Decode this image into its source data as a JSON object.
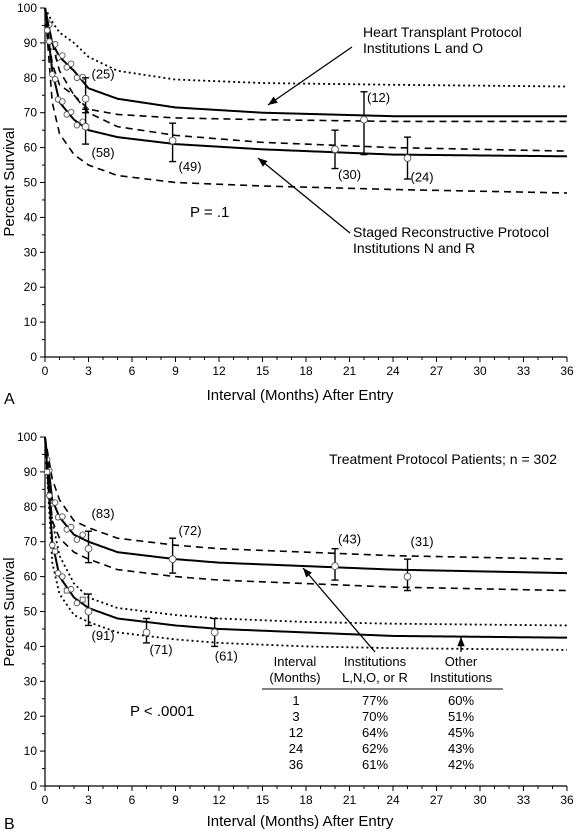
{
  "chart_data": [
    {
      "panel": "A",
      "type": "line",
      "xlabel": "Interval (Months) After Entry",
      "ylabel": "Percent Survival",
      "xlim": [
        0,
        36
      ],
      "ylim": [
        0,
        100
      ],
      "xticks": [
        "0",
        "3",
        "6",
        "9",
        "12",
        "15",
        "18",
        "21",
        "24",
        "27",
        "30",
        "33",
        "36"
      ],
      "yticks": [
        "0",
        "10",
        "20",
        "30",
        "40",
        "50",
        "60",
        "70",
        "80",
        "90",
        "100"
      ],
      "series": [
        {
          "name": "Heart Transplant Protocol Institutions L and O",
          "curve": [
            [
              0,
              100
            ],
            [
              0.5,
              90
            ],
            [
              1,
              86
            ],
            [
              2,
              82
            ],
            [
              3,
              77
            ],
            [
              5,
              74
            ],
            [
              9,
              71.5
            ],
            [
              15,
              70
            ],
            [
              24,
              69
            ],
            [
              36,
              69
            ]
          ],
          "upper": [
            [
              0,
              100
            ],
            [
              0.5,
              96
            ],
            [
              1,
              93
            ],
            [
              2,
              90
            ],
            [
              3,
              86
            ],
            [
              5,
              82
            ],
            [
              9,
              79.5
            ],
            [
              15,
              78.5
            ],
            [
              24,
              78
            ],
            [
              36,
              77.5
            ]
          ],
          "lower": [
            [
              0,
              100
            ],
            [
              0.5,
              84
            ],
            [
              1,
              78
            ],
            [
              2,
              75
            ],
            [
              3,
              71
            ],
            [
              5,
              69.5
            ],
            [
              9,
              68.5
            ],
            [
              15,
              68
            ],
            [
              24,
              67.5
            ],
            [
              36,
              67.5
            ]
          ],
          "labels": [
            {
              "x": 3,
              "text": "(25)"
            },
            {
              "x": 22,
              "text": "(12)"
            }
          ]
        },
        {
          "name": "Staged Reconstructive Protocol Institutions N and R",
          "curve": [
            [
              0,
              100
            ],
            [
              0.5,
              82
            ],
            [
              1,
              73
            ],
            [
              2,
              68
            ],
            [
              3,
              65
            ],
            [
              5,
              63
            ],
            [
              9,
              61
            ],
            [
              15,
              59.5
            ],
            [
              24,
              58
            ],
            [
              36,
              57.5
            ]
          ],
          "upper": [
            [
              0,
              100
            ],
            [
              0.5,
              90
            ],
            [
              1,
              82
            ],
            [
              2,
              75
            ],
            [
              3,
              70
            ],
            [
              5,
              66
            ],
            [
              9,
              63.5
            ],
            [
              15,
              61.5
            ],
            [
              24,
              60
            ],
            [
              36,
              59
            ]
          ],
          "lower": [
            [
              0,
              100
            ],
            [
              0.5,
              73
            ],
            [
              1,
              64
            ],
            [
              2,
              58
            ],
            [
              3,
              55
            ],
            [
              5,
              52
            ],
            [
              9,
              50
            ],
            [
              15,
              49
            ],
            [
              24,
              48
            ],
            [
              36,
              47
            ]
          ],
          "labels": [
            {
              "x": 3,
              "text": "(58)"
            },
            {
              "x": 9,
              "text": "(49)"
            },
            {
              "x": 20,
              "text": "(30)"
            },
            {
              "x": 25,
              "text": "(24)"
            }
          ]
        }
      ],
      "error_bars": [
        {
          "x": 2.8,
          "low": 70,
          "mid": 74,
          "high": 80
        },
        {
          "x": 2.8,
          "low": 61,
          "mid": 66,
          "high": 71
        },
        {
          "x": 8.8,
          "low": 56,
          "mid": 62,
          "high": 67
        },
        {
          "x": 20,
          "low": 54,
          "mid": 59.5,
          "high": 65
        },
        {
          "x": 22,
          "low": 58,
          "mid": 68,
          "high": 76
        },
        {
          "x": 25,
          "low": 51,
          "mid": 57,
          "high": 63
        }
      ],
      "annotations": [
        "Heart Transplant Protocol",
        "Institutions L and O",
        "Staged Reconstructive Protocol",
        "Institutions N and R",
        "P = .1"
      ],
      "panel_label": "A"
    },
    {
      "panel": "B",
      "type": "line",
      "title": "Treatment Protocol Patients; n = 302",
      "xlabel": "Interval (Months) After Entry",
      "ylabel": "Percent Survival",
      "xlim": [
        0,
        36
      ],
      "ylim": [
        0,
        100
      ],
      "xticks": [
        "0",
        "3",
        "6",
        "9",
        "12",
        "15",
        "18",
        "21",
        "24",
        "27",
        "30",
        "33",
        "36"
      ],
      "yticks": [
        "0",
        "10",
        "20",
        "30",
        "40",
        "50",
        "60",
        "70",
        "80",
        "90",
        "100"
      ],
      "series": [
        {
          "name": "Institutions L,N,O, or R",
          "curve": [
            [
              0,
              100
            ],
            [
              0.5,
              82
            ],
            [
              1,
              77
            ],
            [
              2,
              72
            ],
            [
              3,
              70
            ],
            [
              5,
              67
            ],
            [
              9,
              65
            ],
            [
              12,
              64
            ],
            [
              18,
              63
            ],
            [
              24,
              62
            ],
            [
              36,
              61
            ]
          ],
          "upper": [
            [
              0,
              100
            ],
            [
              0.5,
              88
            ],
            [
              1,
              82
            ],
            [
              2,
              76
            ],
            [
              3,
              74
            ],
            [
              5,
              71
            ],
            [
              9,
              69
            ],
            [
              12,
              68
            ],
            [
              18,
              67
            ],
            [
              24,
              66
            ],
            [
              36,
              65
            ]
          ],
          "lower": [
            [
              0,
              100
            ],
            [
              0.5,
              76
            ],
            [
              1,
              71
            ],
            [
              2,
              67
            ],
            [
              3,
              65
            ],
            [
              5,
              62
            ],
            [
              9,
              60
            ],
            [
              12,
              59
            ],
            [
              18,
              58
            ],
            [
              24,
              57
            ],
            [
              36,
              56
            ]
          ],
          "labels": [
            {
              "x": 3,
              "text": "(83)"
            },
            {
              "x": 9,
              "text": "(72)"
            },
            {
              "x": 20,
              "text": "(43)"
            },
            {
              "x": 25,
              "text": "(31)"
            }
          ]
        },
        {
          "name": "Other Institutions",
          "curve": [
            [
              0,
              100
            ],
            [
              0.5,
              70
            ],
            [
              1,
              60
            ],
            [
              2,
              54
            ],
            [
              3,
              51
            ],
            [
              5,
              48
            ],
            [
              9,
              46
            ],
            [
              12,
              45
            ],
            [
              18,
              44
            ],
            [
              24,
              43
            ],
            [
              36,
              42.5
            ]
          ],
          "upper": [
            [
              0,
              100
            ],
            [
              0.5,
              76
            ],
            [
              1,
              66
            ],
            [
              2,
              58
            ],
            [
              3,
              54
            ],
            [
              5,
              51
            ],
            [
              9,
              49
            ],
            [
              12,
              48
            ],
            [
              18,
              47
            ],
            [
              24,
              46.5
            ],
            [
              36,
              46
            ]
          ],
          "lower": [
            [
              0,
              100
            ],
            [
              0.5,
              64
            ],
            [
              1,
              55
            ],
            [
              2,
              49
            ],
            [
              3,
              47
            ],
            [
              5,
              44
            ],
            [
              9,
              42
            ],
            [
              12,
              41
            ],
            [
              18,
              40
            ],
            [
              24,
              39.5
            ],
            [
              36,
              39
            ]
          ],
          "labels": [
            {
              "x": 3,
              "text": "(91)"
            },
            {
              "x": 7,
              "text": "(71)"
            },
            {
              "x": 11.5,
              "text": "(61)"
            }
          ]
        }
      ],
      "error_bars": [
        {
          "x": 3,
          "low": 64,
          "mid": 68,
          "high": 73
        },
        {
          "x": 8.8,
          "low": 61,
          "mid": 65,
          "high": 71
        },
        {
          "x": 20,
          "low": 59,
          "mid": 63,
          "high": 68
        },
        {
          "x": 25,
          "low": 56,
          "mid": 60,
          "high": 65
        },
        {
          "x": 3,
          "low": 46,
          "mid": 50,
          "high": 55
        },
        {
          "x": 7,
          "low": 41,
          "mid": 44,
          "high": 48
        },
        {
          "x": 11.7,
          "low": 40,
          "mid": 44,
          "high": 48
        }
      ],
      "table": {
        "headers": [
          [
            "Interval",
            "(Months)"
          ],
          [
            "Institutions",
            "L,N,O, or R"
          ],
          [
            "Other",
            "Institutions"
          ]
        ],
        "rows": [
          [
            "1",
            "77%",
            "60%"
          ],
          [
            "3",
            "70%",
            "51%"
          ],
          [
            "12",
            "64%",
            "45%"
          ],
          [
            "24",
            "62%",
            "43%"
          ],
          [
            "36",
            "61%",
            "42%"
          ]
        ]
      },
      "annotations": [
        "P < .0001"
      ],
      "panel_label": "B"
    }
  ]
}
